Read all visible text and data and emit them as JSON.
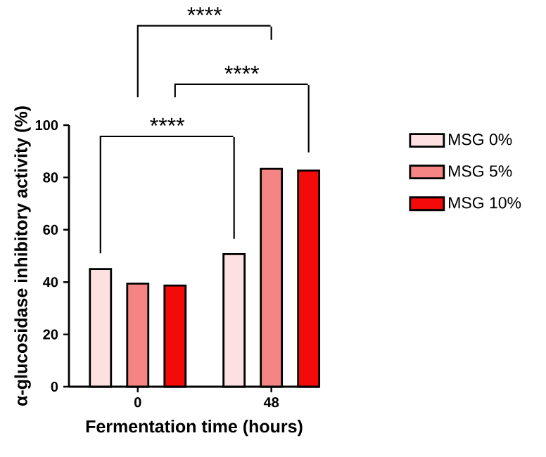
{
  "chart_data": {
    "type": "bar",
    "categories": [
      "0",
      "48"
    ],
    "xlabel": "Fermentation time (hours)",
    "ylabel": "α-glucosidase inhibitory activity (%)",
    "series": [
      {
        "name": "MSG 0%",
        "color": "#fde0e0",
        "values": [
          45,
          50.7
        ]
      },
      {
        "name": "MSG 5%",
        "color": "#f58484",
        "values": [
          39.4,
          83.3
        ]
      },
      {
        "name": "MSG 10%",
        "color": "#f50a0a",
        "values": [
          38.7,
          82.6
        ]
      }
    ],
    "ylim": [
      0,
      100
    ],
    "yticks": [
      0,
      20,
      40,
      60,
      80,
      100
    ],
    "legend": "right",
    "grid": false,
    "annotations": [
      "****",
      "****",
      "****"
    ]
  }
}
